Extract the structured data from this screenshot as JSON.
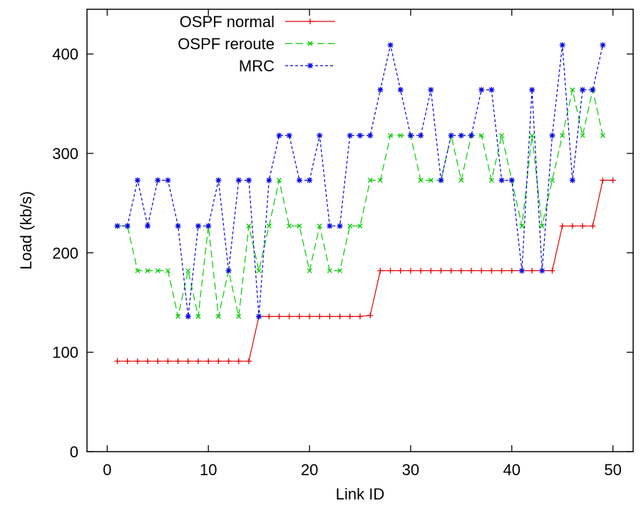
{
  "chart_data": {
    "type": "line",
    "title": "",
    "xlabel": "Link ID",
    "ylabel": "Load (kb/s)",
    "xlim": [
      -2,
      52
    ],
    "ylim": [
      0,
      445
    ],
    "x_ticks": [
      0,
      10,
      20,
      30,
      40,
      50
    ],
    "y_ticks": [
      0,
      100,
      200,
      300,
      400
    ],
    "grid": false,
    "legend_position": "top-right",
    "series": [
      {
        "name": "OSPF normal",
        "color": "#e00000",
        "dash": "solid",
        "marker": "plus",
        "x": [
          1,
          2,
          3,
          4,
          5,
          6,
          7,
          8,
          9,
          10,
          11,
          12,
          13,
          14,
          15,
          16,
          17,
          18,
          19,
          20,
          21,
          22,
          23,
          24,
          25,
          26,
          27,
          28,
          29,
          30,
          31,
          32,
          33,
          34,
          35,
          36,
          37,
          38,
          39,
          40,
          41,
          42,
          43,
          44,
          45,
          46,
          47,
          48,
          49,
          50
        ],
        "y": [
          91,
          91,
          91,
          91,
          91,
          91,
          91,
          91,
          91,
          91,
          91,
          91,
          91,
          91,
          136,
          136,
          136,
          136,
          136,
          136,
          136,
          136,
          136,
          136,
          136,
          137,
          182,
          182,
          182,
          182,
          182,
          182,
          182,
          182,
          182,
          182,
          182,
          182,
          182,
          182,
          182,
          182,
          182,
          182,
          227,
          227,
          227,
          227,
          273,
          273
        ]
      },
      {
        "name": "OSPF reroute",
        "color": "#00cc00",
        "dash": "long",
        "marker": "x",
        "x": [
          1,
          2,
          3,
          4,
          5,
          6,
          7,
          8,
          9,
          10,
          11,
          12,
          13,
          14,
          15,
          16,
          17,
          18,
          19,
          20,
          21,
          22,
          23,
          24,
          25,
          26,
          27,
          28,
          29,
          30,
          31,
          32,
          33,
          34,
          35,
          36,
          37,
          38,
          39,
          40,
          41,
          42,
          43,
          44,
          45,
          46,
          47,
          48,
          49
        ],
        "y": [
          227,
          227,
          182,
          182,
          182,
          182,
          136,
          182,
          136,
          227,
          136,
          182,
          136,
          227,
          182,
          227,
          273,
          227,
          227,
          182,
          227,
          182,
          182,
          227,
          227,
          273,
          273,
          318,
          318,
          318,
          273,
          273,
          273,
          318,
          273,
          318,
          318,
          273,
          318,
          273,
          227,
          318,
          227,
          273,
          318,
          364,
          318,
          364,
          318
        ]
      },
      {
        "name": "MRC",
        "color": "#0000e0",
        "dash": "short",
        "marker": "star",
        "x": [
          1,
          2,
          3,
          4,
          5,
          6,
          7,
          8,
          9,
          10,
          11,
          12,
          13,
          14,
          15,
          16,
          17,
          18,
          19,
          20,
          21,
          22,
          23,
          24,
          25,
          26,
          27,
          28,
          29,
          30,
          31,
          32,
          33,
          34,
          35,
          36,
          37,
          38,
          39,
          40,
          41,
          42,
          43,
          44,
          45,
          46,
          47,
          48,
          49
        ],
        "y": [
          227,
          227,
          273,
          227,
          273,
          273,
          227,
          136,
          227,
          227,
          273,
          182,
          273,
          273,
          136,
          273,
          318,
          318,
          273,
          273,
          318,
          227,
          227,
          318,
          318,
          318,
          364,
          409,
          364,
          318,
          318,
          364,
          273,
          318,
          318,
          318,
          364,
          364,
          273,
          273,
          182,
          364,
          182,
          318,
          409,
          273,
          364,
          364,
          409
        ]
      }
    ]
  }
}
